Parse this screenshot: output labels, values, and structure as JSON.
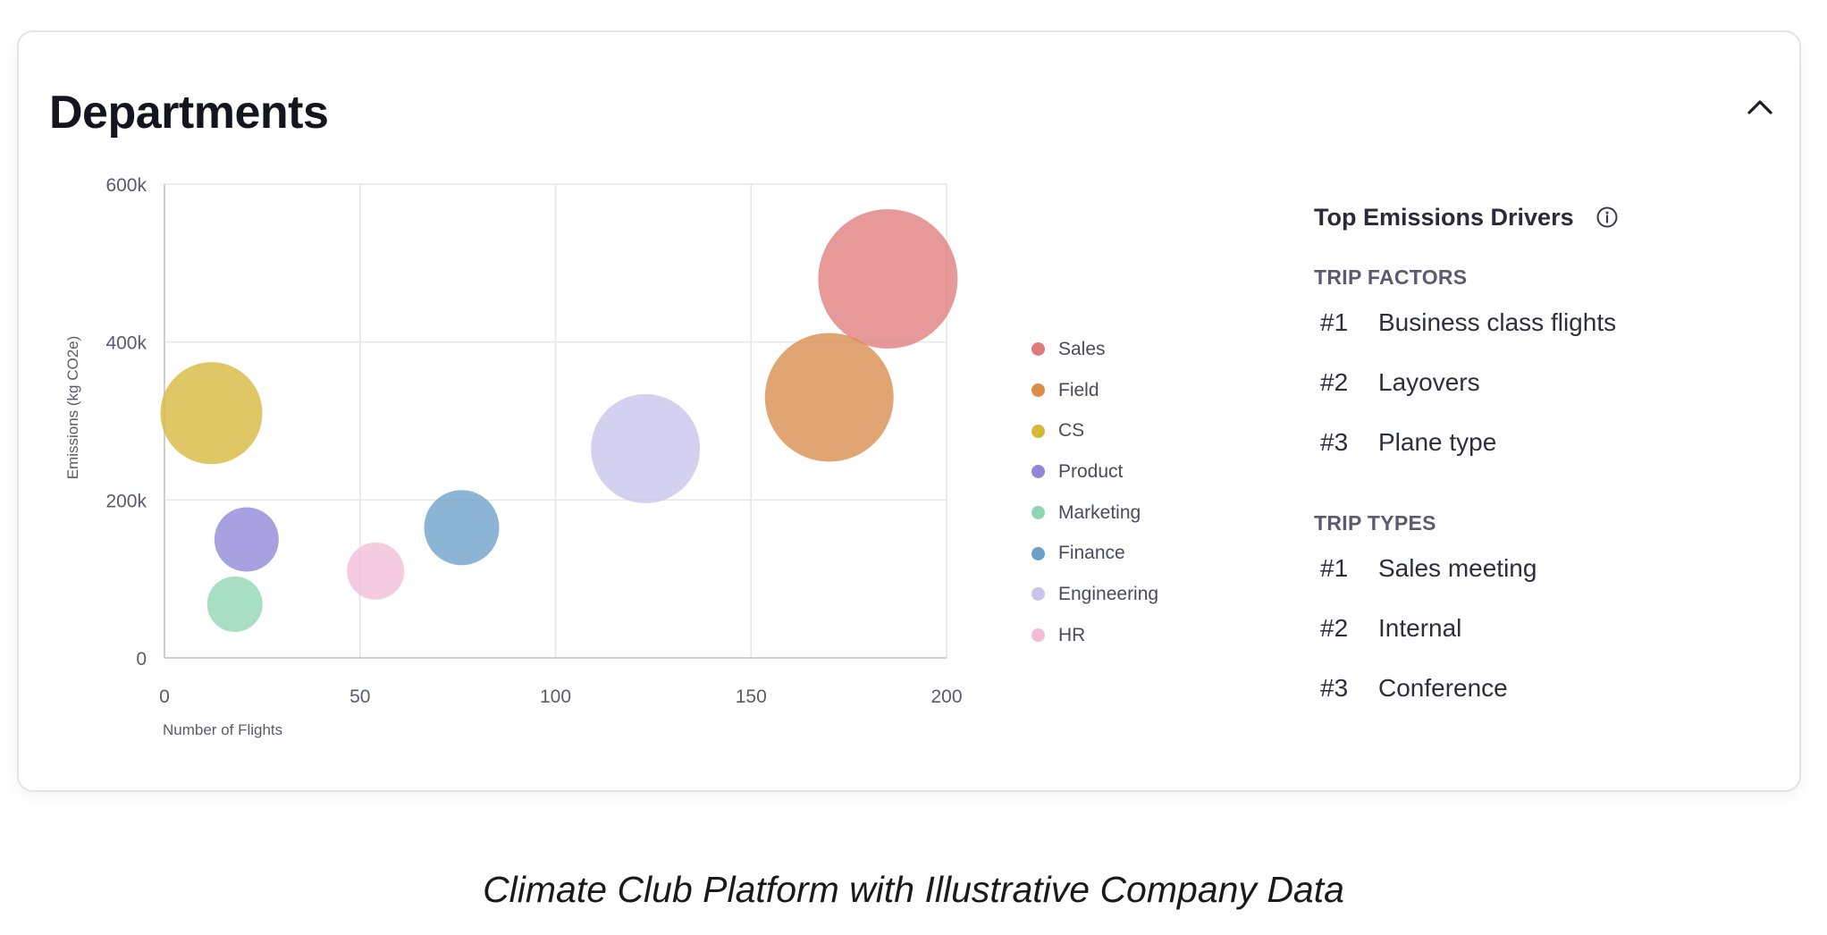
{
  "card": {
    "title": "Departments",
    "collapse_icon": "chevron-up-icon"
  },
  "chart_data": {
    "type": "scatter",
    "variant": "bubble",
    "xlabel": "Number of Flights",
    "ylabel": "Emissions (kg CO2e)",
    "xlim": [
      0,
      200
    ],
    "ylim": [
      0,
      600000
    ],
    "x_ticks": [
      0,
      50,
      100,
      150,
      200
    ],
    "x_tick_labels": [
      "0",
      "50",
      "100",
      "150",
      "200"
    ],
    "y_ticks": [
      0,
      200000,
      400000,
      600000
    ],
    "y_tick_labels": [
      "0",
      "200k",
      "400k",
      "600k"
    ],
    "grid": true,
    "legend_position": "right",
    "series": [
      {
        "name": "Sales",
        "x": 185,
        "y": 480000,
        "size": 78,
        "color": "#e07b7b"
      },
      {
        "name": "Field",
        "x": 170,
        "y": 330000,
        "size": 72,
        "color": "#d98c4c"
      },
      {
        "name": "CS",
        "x": 12,
        "y": 310000,
        "size": 57,
        "color": "#d6b73a"
      },
      {
        "name": "Product",
        "x": 21,
        "y": 150000,
        "size": 36,
        "color": "#8f86d8"
      },
      {
        "name": "Marketing",
        "x": 18,
        "y": 68000,
        "size": 31,
        "color": "#8fd6b4"
      },
      {
        "name": "Finance",
        "x": 76,
        "y": 165000,
        "size": 42,
        "color": "#6c9fc8"
      },
      {
        "name": "Engineering",
        "x": 123,
        "y": 265000,
        "size": 61,
        "color": "#c8c4ec"
      },
      {
        "name": "HR",
        "x": 54,
        "y": 110000,
        "size": 32,
        "color": "#f2bcd6"
      }
    ]
  },
  "drivers": {
    "heading": "Top Emissions Drivers",
    "info_icon": "info-icon",
    "sections": [
      {
        "title": "TRIP FACTORS",
        "items": [
          {
            "rank": "#1",
            "label": "Business class flights"
          },
          {
            "rank": "#2",
            "label": "Layovers"
          },
          {
            "rank": "#3",
            "label": "Plane type"
          }
        ]
      },
      {
        "title": "TRIP TYPES",
        "items": [
          {
            "rank": "#1",
            "label": "Sales meeting"
          },
          {
            "rank": "#2",
            "label": "Internal"
          },
          {
            "rank": "#3",
            "label": "Conference"
          }
        ]
      }
    ]
  },
  "caption": "Climate Club Platform with Illustrative Company Data"
}
